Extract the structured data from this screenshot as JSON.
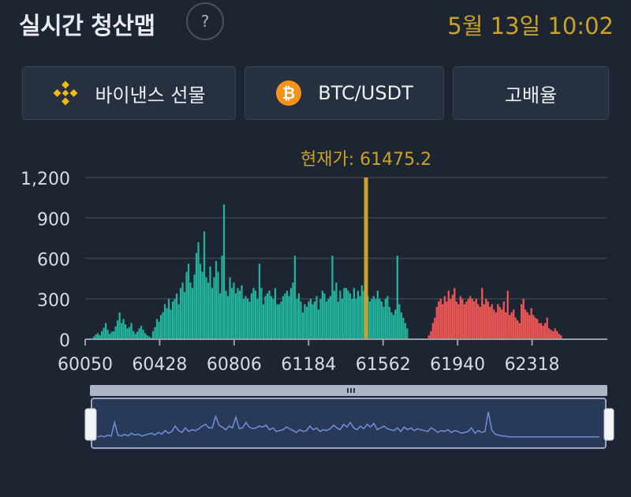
{
  "header": {
    "title": "실시간 청산맵",
    "help_label": "?",
    "datetime": "5월 13일 10:02"
  },
  "selectors": {
    "exchange": "바이낸스 선물",
    "pair": "BTC/USDT",
    "leverage": "고배율"
  },
  "colors": {
    "background": "#1e2532",
    "accent_gold": "#c9a227",
    "long_liquidation": "#22b39c",
    "short_liquidation": "#ef5656",
    "navigator_line": "#6f8fdc",
    "binance_brand": "#f0b90b",
    "bitcoin_brand": "#f7931a"
  },
  "icons": {
    "exchange": "binance-logo-icon",
    "pair": "bitcoin-logo-icon",
    "help": "question-mark-icon",
    "navigator_handle": "grip-icon"
  },
  "chart_data": {
    "type": "bar",
    "title": "",
    "current_price_label": "현재가: 61475.2",
    "current_price": 61475.2,
    "xlim": [
      60050,
      62700
    ],
    "ylim": [
      0,
      1200
    ],
    "y_ticks": [
      0,
      300,
      600,
      900,
      1200
    ],
    "y_tick_labels": [
      "0",
      "300",
      "600",
      "900",
      "1,200"
    ],
    "x_ticks": [
      60050,
      60428,
      60806,
      61184,
      61562,
      61940,
      62318
    ],
    "x_tick_labels": [
      "60050",
      "60428",
      "60806",
      "61184",
      "61562",
      "61940",
      "62318"
    ],
    "grid": true,
    "series": [
      {
        "side": "long",
        "color": "#22b39c",
        "x_start": 60090,
        "step": 10,
        "values": [
          20,
          35,
          45,
          30,
          60,
          85,
          120,
          70,
          40,
          55,
          60,
          95,
          140,
          200,
          120,
          150,
          110,
          80,
          90,
          120,
          60,
          40,
          55,
          80,
          100,
          70,
          45,
          30,
          20,
          10,
          60,
          90,
          150,
          130,
          180,
          200,
          260,
          230,
          300,
          220,
          280,
          300,
          340,
          260,
          380,
          420,
          350,
          500,
          560,
          420,
          380,
          480,
          640,
          720,
          560,
          500,
          800,
          460,
          420,
          540,
          380,
          460,
          580,
          500,
          340,
          620,
          1000,
          360,
          320,
          460,
          380,
          420,
          340,
          380,
          360,
          400,
          300,
          320,
          300,
          280,
          340,
          380,
          360,
          300,
          560,
          380,
          260,
          320,
          340,
          360,
          320,
          300,
          380,
          260,
          260,
          280,
          320,
          340,
          360,
          320,
          380,
          420,
          620,
          300,
          340,
          280,
          200,
          260,
          240,
          280,
          300,
          260,
          280,
          320,
          220,
          300,
          360,
          340,
          280,
          300,
          320,
          620,
          360,
          420,
          280,
          360,
          300,
          380,
          380,
          360,
          340,
          300,
          380,
          300,
          360,
          320,
          400,
          360,
          300,
          320,
          280,
          300,
          320,
          300,
          360,
          300,
          280,
          240,
          300,
          320,
          240,
          200,
          180,
          220,
          620,
          260,
          200,
          160,
          120,
          80
        ]
      },
      {
        "side": "short",
        "color": "#ef5656",
        "x_start": 61790,
        "step": 10,
        "values": [
          30,
          60,
          120,
          160,
          240,
          280,
          300,
          260,
          320,
          280,
          360,
          300,
          330,
          380,
          280,
          260,
          320,
          300,
          260,
          280,
          300,
          320,
          300,
          280,
          300,
          260,
          240,
          380,
          260,
          300,
          280,
          240,
          260,
          220,
          200,
          260,
          240,
          220,
          280,
          200,
          360,
          180,
          200,
          220,
          160,
          140,
          120,
          260,
          300,
          220,
          200,
          180,
          230,
          180,
          160,
          150,
          120,
          120,
          100,
          120,
          160,
          80,
          70,
          60,
          80,
          60,
          40,
          30
        ]
      }
    ],
    "navigator": {
      "values": [
        2,
        3,
        2,
        4,
        3,
        18,
        4,
        3,
        5,
        3,
        6,
        4,
        5,
        3,
        4,
        5,
        6,
        4,
        7,
        5,
        9,
        6,
        8,
        14,
        9,
        7,
        12,
        8,
        10,
        9,
        11,
        14,
        16,
        12,
        12,
        25,
        15,
        13,
        10,
        14,
        12,
        24,
        11,
        12,
        18,
        13,
        11,
        12,
        14,
        13,
        15,
        10,
        12,
        8,
        9,
        10,
        13,
        11,
        9,
        7,
        10,
        8,
        9,
        14,
        10,
        12,
        8,
        10,
        9,
        11,
        15,
        12,
        10,
        16,
        13,
        18,
        12,
        10,
        14,
        11,
        16,
        13,
        17,
        10,
        12,
        14,
        11,
        10,
        9,
        12,
        8,
        13,
        10,
        12,
        9,
        11,
        10,
        9,
        8,
        12,
        10,
        7,
        9,
        8,
        10,
        7,
        9,
        8,
        6,
        7,
        8,
        12,
        6,
        9,
        7,
        8,
        30,
        10,
        5,
        4,
        3,
        3,
        2,
        2,
        2,
        2,
        2,
        2,
        2,
        2,
        2,
        2,
        2,
        2,
        2,
        2,
        2,
        2,
        2,
        2,
        2,
        2,
        2,
        2,
        2,
        2,
        2,
        2,
        2,
        2
      ]
    }
  }
}
